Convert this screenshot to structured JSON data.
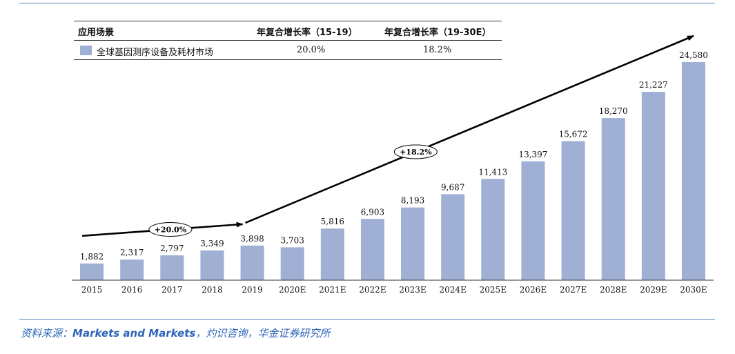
{
  "legend": {
    "headers": [
      "应用场景",
      "年复合增长率（15-19）",
      "年复合增长率（19-30E）"
    ],
    "row_label": "全球基因测序设备及耗材市场",
    "cagr_1": "20.0%",
    "cagr_2": "18.2%"
  },
  "source": {
    "prefix": "资料来源：",
    "highlight": "Markets and Markets",
    "suffix": "，灼识咨询，华金证券研究所"
  },
  "colors": {
    "bar": "#9fb0d4",
    "rule": "#4a7fbf",
    "arrow": "#000000"
  },
  "chart_data": {
    "type": "bar",
    "title": "",
    "xlabel": "",
    "ylabel": "",
    "categories": [
      "2015",
      "2016",
      "2017",
      "2018",
      "2019",
      "2020E",
      "2021E",
      "2022E",
      "2023E",
      "2024E",
      "2025E",
      "2026E",
      "2027E",
      "2028E",
      "2029E",
      "2030E"
    ],
    "values": [
      1882,
      2317,
      2797,
      3349,
      3898,
      3703,
      5816,
      6903,
      8193,
      9687,
      11413,
      13397,
      15672,
      18270,
      21227,
      24580
    ],
    "value_labels": [
      "1,882",
      "2,317",
      "2,797",
      "3,349",
      "3,898",
      "3,703",
      "5,816",
      "6,903",
      "8,193",
      "9,687",
      "11,413",
      "13,397",
      "15,672",
      "18,270",
      "21,227",
      "24,580"
    ],
    "ylim": [
      0,
      24580
    ],
    "grid": false,
    "annotations": [
      {
        "text": "+20.0%",
        "from": "2015",
        "to": "2019",
        "kind": "trend-arrow"
      },
      {
        "text": "+18.2%",
        "from": "2019",
        "to": "2030E",
        "kind": "trend-arrow"
      }
    ]
  }
}
